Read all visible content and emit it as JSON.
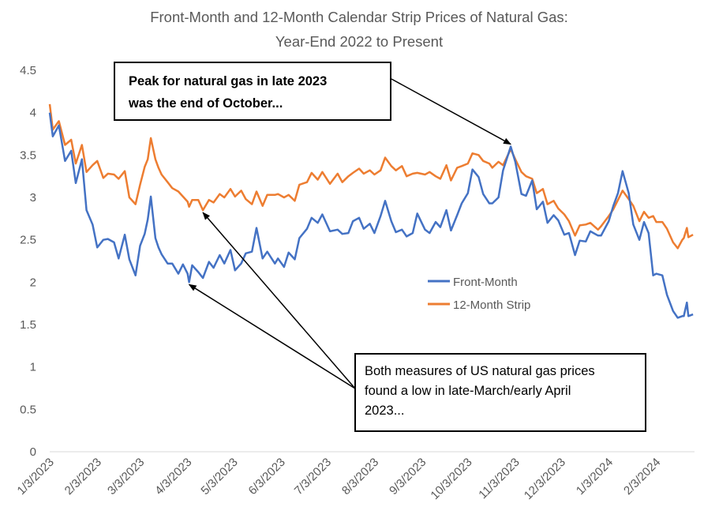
{
  "chart_data": {
    "type": "line",
    "title": "Front-Month and 12-Month Calendar Strip Prices of Natural Gas:",
    "subtitle": "Year-End 2022 to Present",
    "xlabel": "",
    "ylabel": "",
    "ylim": [
      0,
      4.5
    ],
    "y_ticks": [
      "0",
      "0.5",
      "1",
      "1.5",
      "2",
      "2.5",
      "3",
      "3.5",
      "4",
      "4.5"
    ],
    "x_ticks": [
      "1/3/2023",
      "2/3/2023",
      "3/3/2023",
      "4/3/2023",
      "5/3/2023",
      "6/3/2023",
      "7/3/2023",
      "8/3/2023",
      "9/3/2023",
      "10/3/2023",
      "11/3/2023",
      "12/3/2023",
      "1/3/2024",
      "2/3/2024"
    ],
    "grid": false,
    "legend_position": "center-right",
    "series": [
      {
        "name": "Front-Month",
        "color": "#4472C4",
        "points": [
          [
            "2023-01-03",
            4.0
          ],
          [
            "2023-01-05",
            3.72
          ],
          [
            "2023-01-09",
            3.85
          ],
          [
            "2023-01-13",
            3.43
          ],
          [
            "2023-01-17",
            3.55
          ],
          [
            "2023-01-20",
            3.17
          ],
          [
            "2023-01-24",
            3.45
          ],
          [
            "2023-01-27",
            2.85
          ],
          [
            "2023-01-31",
            2.68
          ],
          [
            "2023-02-03",
            2.41
          ],
          [
            "2023-02-07",
            2.5
          ],
          [
            "2023-02-10",
            2.51
          ],
          [
            "2023-02-14",
            2.47
          ],
          [
            "2023-02-17",
            2.28
          ],
          [
            "2023-02-21",
            2.56
          ],
          [
            "2023-02-24",
            2.27
          ],
          [
            "2023-02-28",
            2.08
          ],
          [
            "2023-03-03",
            2.43
          ],
          [
            "2023-03-06",
            2.57
          ],
          [
            "2023-03-08",
            2.74
          ],
          [
            "2023-03-10",
            3.01
          ],
          [
            "2023-03-13",
            2.52
          ],
          [
            "2023-03-15",
            2.41
          ],
          [
            "2023-03-17",
            2.33
          ],
          [
            "2023-03-21",
            2.22
          ],
          [
            "2023-03-24",
            2.22
          ],
          [
            "2023-03-28",
            2.1
          ],
          [
            "2023-03-31",
            2.21
          ],
          [
            "2023-04-03",
            2.1
          ],
          [
            "2023-04-04",
            2.0
          ],
          [
            "2023-04-06",
            2.2
          ],
          [
            "2023-04-10",
            2.12
          ],
          [
            "2023-04-13",
            2.05
          ],
          [
            "2023-04-17",
            2.24
          ],
          [
            "2023-04-20",
            2.17
          ],
          [
            "2023-04-24",
            2.32
          ],
          [
            "2023-04-27",
            2.22
          ],
          [
            "2023-05-01",
            2.38
          ],
          [
            "2023-05-04",
            2.14
          ],
          [
            "2023-05-08",
            2.22
          ],
          [
            "2023-05-11",
            2.34
          ],
          [
            "2023-05-15",
            2.36
          ],
          [
            "2023-05-18",
            2.64
          ],
          [
            "2023-05-22",
            2.28
          ],
          [
            "2023-05-25",
            2.36
          ],
          [
            "2023-05-30",
            2.22
          ],
          [
            "2023-06-01",
            2.28
          ],
          [
            "2023-06-05",
            2.18
          ],
          [
            "2023-06-08",
            2.35
          ],
          [
            "2023-06-12",
            2.27
          ],
          [
            "2023-06-15",
            2.52
          ],
          [
            "2023-06-20",
            2.63
          ],
          [
            "2023-06-23",
            2.76
          ],
          [
            "2023-06-27",
            2.7
          ],
          [
            "2023-06-30",
            2.8
          ],
          [
            "2023-07-05",
            2.6
          ],
          [
            "2023-07-10",
            2.62
          ],
          [
            "2023-07-13",
            2.57
          ],
          [
            "2023-07-17",
            2.58
          ],
          [
            "2023-07-20",
            2.72
          ],
          [
            "2023-07-24",
            2.76
          ],
          [
            "2023-07-27",
            2.63
          ],
          [
            "2023-07-31",
            2.69
          ],
          [
            "2023-08-03",
            2.58
          ],
          [
            "2023-08-07",
            2.78
          ],
          [
            "2023-08-10",
            2.96
          ],
          [
            "2023-08-14",
            2.72
          ],
          [
            "2023-08-17",
            2.59
          ],
          [
            "2023-08-21",
            2.62
          ],
          [
            "2023-08-24",
            2.54
          ],
          [
            "2023-08-28",
            2.58
          ],
          [
            "2023-08-31",
            2.81
          ],
          [
            "2023-09-05",
            2.62
          ],
          [
            "2023-09-08",
            2.58
          ],
          [
            "2023-09-12",
            2.71
          ],
          [
            "2023-09-15",
            2.65
          ],
          [
            "2023-09-19",
            2.85
          ],
          [
            "2023-09-22",
            2.61
          ],
          [
            "2023-09-26",
            2.79
          ],
          [
            "2023-09-29",
            2.93
          ],
          [
            "2023-10-03",
            3.05
          ],
          [
            "2023-10-06",
            3.33
          ],
          [
            "2023-10-10",
            3.24
          ],
          [
            "2023-10-13",
            3.04
          ],
          [
            "2023-10-17",
            2.93
          ],
          [
            "2023-10-19",
            2.93
          ],
          [
            "2023-10-23",
            3.0
          ],
          [
            "2023-10-26",
            3.32
          ],
          [
            "2023-10-31",
            3.6
          ],
          [
            "2023-11-03",
            3.42
          ],
          [
            "2023-11-07",
            3.04
          ],
          [
            "2023-11-10",
            3.02
          ],
          [
            "2023-11-14",
            3.2
          ],
          [
            "2023-11-17",
            2.86
          ],
          [
            "2023-11-21",
            2.95
          ],
          [
            "2023-11-24",
            2.7
          ],
          [
            "2023-11-28",
            2.79
          ],
          [
            "2023-12-01",
            2.73
          ],
          [
            "2023-12-05",
            2.56
          ],
          [
            "2023-12-08",
            2.58
          ],
          [
            "2023-12-12",
            2.32
          ],
          [
            "2023-12-15",
            2.49
          ],
          [
            "2023-12-19",
            2.48
          ],
          [
            "2023-12-22",
            2.6
          ],
          [
            "2023-12-27",
            2.55
          ],
          [
            "2023-12-29",
            2.55
          ],
          [
            "2024-01-03",
            2.72
          ],
          [
            "2024-01-06",
            2.9
          ],
          [
            "2024-01-09",
            3.05
          ],
          [
            "2024-01-12",
            3.31
          ],
          [
            "2024-01-16",
            3.05
          ],
          [
            "2024-01-19",
            2.68
          ],
          [
            "2024-01-23",
            2.5
          ],
          [
            "2024-01-26",
            2.71
          ],
          [
            "2024-01-29",
            2.58
          ],
          [
            "2024-02-01",
            2.08
          ],
          [
            "2024-02-03",
            2.1
          ],
          [
            "2024-02-07",
            2.08
          ],
          [
            "2024-02-10",
            1.85
          ],
          [
            "2024-02-14",
            1.66
          ],
          [
            "2024-02-17",
            1.58
          ],
          [
            "2024-02-20",
            1.6
          ],
          [
            "2024-02-21",
            1.6
          ],
          [
            "2024-02-23",
            1.76
          ],
          [
            "2024-02-24",
            1.6
          ],
          [
            "2024-02-27",
            1.62
          ]
        ]
      },
      {
        "name": "12-Month Strip",
        "color": "#ED7D31",
        "points": [
          [
            "2023-01-03",
            4.1
          ],
          [
            "2023-01-05",
            3.8
          ],
          [
            "2023-01-09",
            3.9
          ],
          [
            "2023-01-13",
            3.62
          ],
          [
            "2023-01-17",
            3.68
          ],
          [
            "2023-01-20",
            3.4
          ],
          [
            "2023-01-24",
            3.62
          ],
          [
            "2023-01-27",
            3.3
          ],
          [
            "2023-01-31",
            3.38
          ],
          [
            "2023-02-03",
            3.43
          ],
          [
            "2023-02-07",
            3.23
          ],
          [
            "2023-02-10",
            3.28
          ],
          [
            "2023-02-14",
            3.27
          ],
          [
            "2023-02-17",
            3.22
          ],
          [
            "2023-02-21",
            3.31
          ],
          [
            "2023-02-24",
            3.0
          ],
          [
            "2023-02-28",
            2.92
          ],
          [
            "2023-03-03",
            3.15
          ],
          [
            "2023-03-06",
            3.36
          ],
          [
            "2023-03-08",
            3.45
          ],
          [
            "2023-03-10",
            3.7
          ],
          [
            "2023-03-13",
            3.45
          ],
          [
            "2023-03-15",
            3.35
          ],
          [
            "2023-03-17",
            3.27
          ],
          [
            "2023-03-21",
            3.18
          ],
          [
            "2023-03-24",
            3.11
          ],
          [
            "2023-03-28",
            3.07
          ],
          [
            "2023-03-31",
            3.01
          ],
          [
            "2023-04-03",
            2.95
          ],
          [
            "2023-04-04",
            2.89
          ],
          [
            "2023-04-06",
            2.97
          ],
          [
            "2023-04-10",
            2.97
          ],
          [
            "2023-04-13",
            2.85
          ],
          [
            "2023-04-17",
            2.97
          ],
          [
            "2023-04-20",
            2.94
          ],
          [
            "2023-04-24",
            3.04
          ],
          [
            "2023-04-27",
            3.0
          ],
          [
            "2023-05-01",
            3.1
          ],
          [
            "2023-05-04",
            3.01
          ],
          [
            "2023-05-08",
            3.08
          ],
          [
            "2023-05-11",
            2.98
          ],
          [
            "2023-05-15",
            2.92
          ],
          [
            "2023-05-18",
            3.07
          ],
          [
            "2023-05-22",
            2.9
          ],
          [
            "2023-05-25",
            3.03
          ],
          [
            "2023-05-30",
            3.03
          ],
          [
            "2023-06-01",
            3.04
          ],
          [
            "2023-06-05",
            3.0
          ],
          [
            "2023-06-08",
            3.03
          ],
          [
            "2023-06-12",
            2.96
          ],
          [
            "2023-06-15",
            3.15
          ],
          [
            "2023-06-20",
            3.18
          ],
          [
            "2023-06-23",
            3.29
          ],
          [
            "2023-06-27",
            3.21
          ],
          [
            "2023-06-30",
            3.3
          ],
          [
            "2023-07-05",
            3.16
          ],
          [
            "2023-07-10",
            3.28
          ],
          [
            "2023-07-13",
            3.18
          ],
          [
            "2023-07-17",
            3.25
          ],
          [
            "2023-07-20",
            3.29
          ],
          [
            "2023-07-24",
            3.34
          ],
          [
            "2023-07-27",
            3.28
          ],
          [
            "2023-07-31",
            3.32
          ],
          [
            "2023-08-03",
            3.27
          ],
          [
            "2023-08-07",
            3.32
          ],
          [
            "2023-08-10",
            3.47
          ],
          [
            "2023-08-14",
            3.37
          ],
          [
            "2023-08-17",
            3.32
          ],
          [
            "2023-08-21",
            3.37
          ],
          [
            "2023-08-24",
            3.25
          ],
          [
            "2023-08-28",
            3.28
          ],
          [
            "2023-08-31",
            3.29
          ],
          [
            "2023-09-05",
            3.27
          ],
          [
            "2023-09-08",
            3.3
          ],
          [
            "2023-09-12",
            3.25
          ],
          [
            "2023-09-15",
            3.22
          ],
          [
            "2023-09-19",
            3.38
          ],
          [
            "2023-09-22",
            3.2
          ],
          [
            "2023-09-26",
            3.35
          ],
          [
            "2023-09-29",
            3.37
          ],
          [
            "2023-10-03",
            3.4
          ],
          [
            "2023-10-06",
            3.52
          ],
          [
            "2023-10-10",
            3.5
          ],
          [
            "2023-10-13",
            3.43
          ],
          [
            "2023-10-17",
            3.4
          ],
          [
            "2023-10-19",
            3.35
          ],
          [
            "2023-10-23",
            3.42
          ],
          [
            "2023-10-26",
            3.38
          ],
          [
            "2023-10-31",
            3.57
          ],
          [
            "2023-11-03",
            3.45
          ],
          [
            "2023-11-07",
            3.3
          ],
          [
            "2023-11-10",
            3.25
          ],
          [
            "2023-11-14",
            3.22
          ],
          [
            "2023-11-17",
            3.05
          ],
          [
            "2023-11-21",
            3.1
          ],
          [
            "2023-11-24",
            2.92
          ],
          [
            "2023-11-28",
            2.96
          ],
          [
            "2023-12-01",
            2.87
          ],
          [
            "2023-12-05",
            2.8
          ],
          [
            "2023-12-08",
            2.72
          ],
          [
            "2023-12-12",
            2.55
          ],
          [
            "2023-12-15",
            2.67
          ],
          [
            "2023-12-19",
            2.68
          ],
          [
            "2023-12-22",
            2.7
          ],
          [
            "2023-12-27",
            2.62
          ],
          [
            "2023-12-29",
            2.66
          ],
          [
            "2024-01-03",
            2.78
          ],
          [
            "2024-01-06",
            2.86
          ],
          [
            "2024-01-09",
            2.97
          ],
          [
            "2024-01-12",
            3.08
          ],
          [
            "2024-01-16",
            2.98
          ],
          [
            "2024-01-19",
            2.9
          ],
          [
            "2024-01-23",
            2.72
          ],
          [
            "2024-01-26",
            2.83
          ],
          [
            "2024-01-29",
            2.76
          ],
          [
            "2024-02-01",
            2.78
          ],
          [
            "2024-02-03",
            2.71
          ],
          [
            "2024-02-07",
            2.71
          ],
          [
            "2024-02-10",
            2.63
          ],
          [
            "2024-02-14",
            2.47
          ],
          [
            "2024-02-17",
            2.4
          ],
          [
            "2024-02-20",
            2.5
          ],
          [
            "2024-02-21",
            2.52
          ],
          [
            "2024-02-23",
            2.64
          ],
          [
            "2024-02-24",
            2.53
          ],
          [
            "2024-02-27",
            2.56
          ]
        ]
      }
    ],
    "annotations": [
      {
        "text_lines": [
          "Peak for natural gas in late 2023",
          "was the end of October..."
        ],
        "bold": true,
        "arrow_targets": [
          [
            "2023-10-31",
            3.6
          ]
        ]
      },
      {
        "text_lines": [
          "Both measures of US natural gas prices",
          "found a low in late-March/early  April",
          "2023..."
        ],
        "bold": false,
        "arrow_targets": [
          [
            "2023-04-13",
            2.85
          ],
          [
            "2023-04-04",
            2.0
          ]
        ]
      }
    ]
  }
}
